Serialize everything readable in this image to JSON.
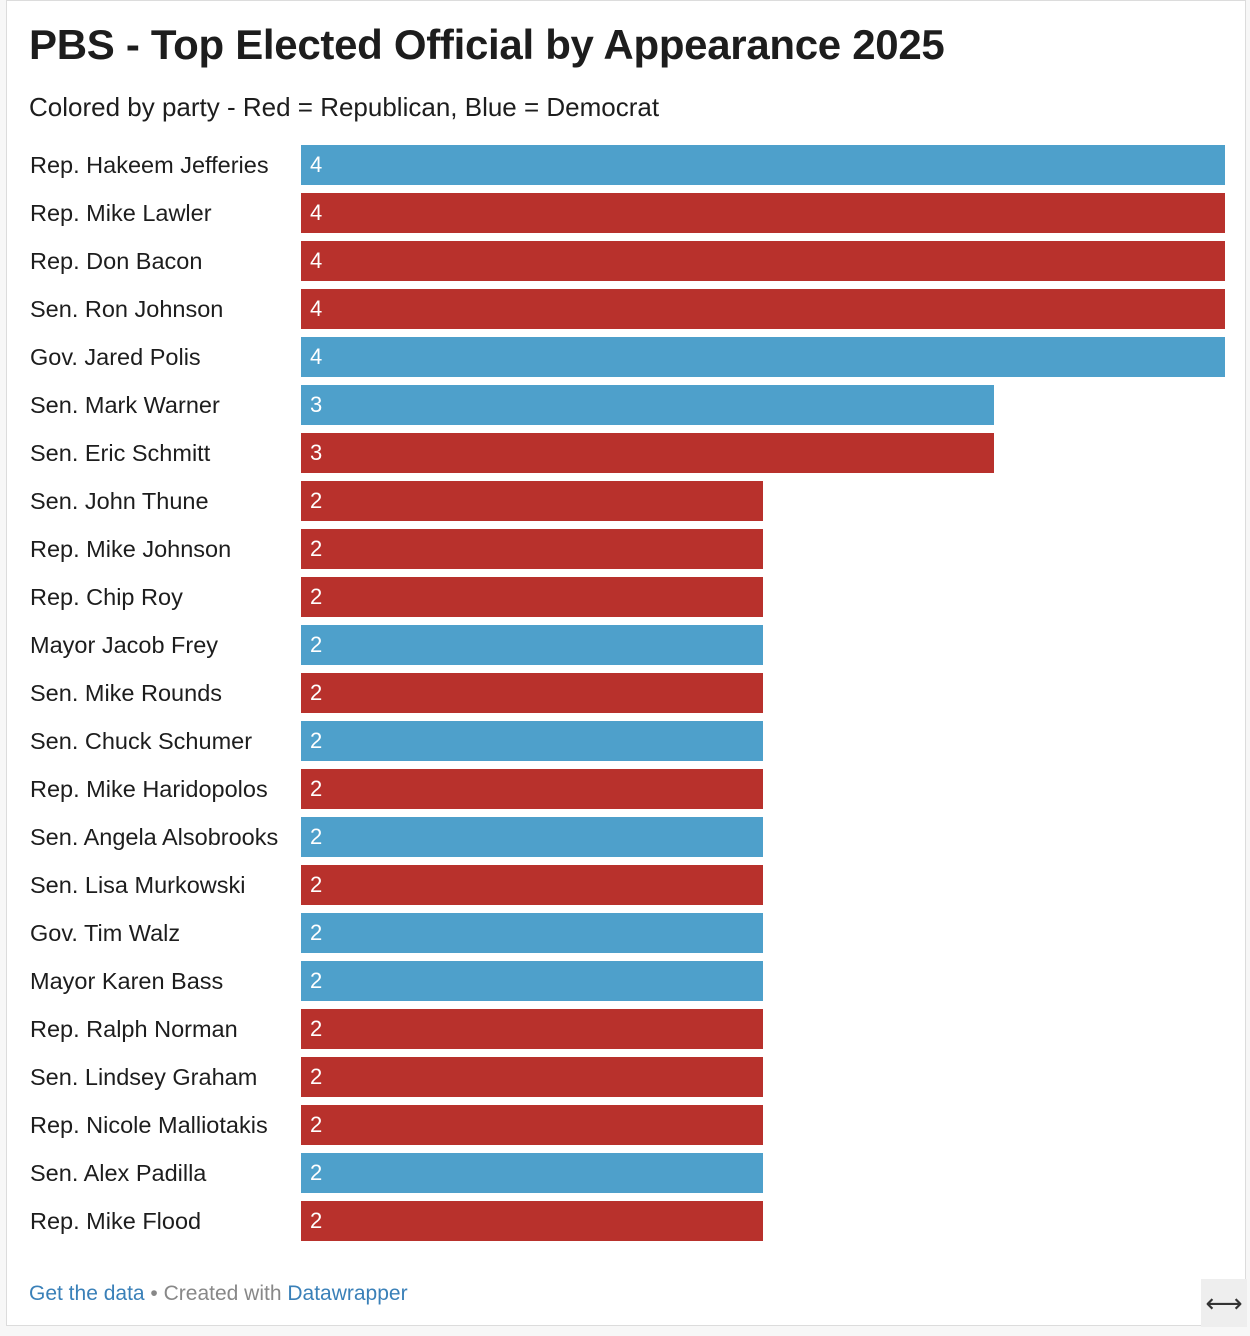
{
  "header": {
    "title": "PBS - Top Elected Official by Appearance 2025",
    "subtitle": "Colored by party - Red = Republican, Blue = Democrat"
  },
  "colors": {
    "republican": "#b8312c",
    "democrat": "#4ea0cb"
  },
  "chart_data": {
    "type": "bar",
    "orientation": "horizontal",
    "title": "PBS - Top Elected Official by Appearance 2025",
    "subtitle": "Colored by party - Red = Republican, Blue = Democrat",
    "xlabel": "",
    "ylabel": "",
    "xlim": [
      0,
      4
    ],
    "grid": false,
    "legend": "none",
    "categories": [
      "Rep. Hakeem Jefferies",
      "Rep. Mike Lawler",
      "Rep. Don Bacon",
      "Sen. Ron Johnson",
      "Gov. Jared Polis",
      "Sen. Mark Warner",
      "Sen. Eric Schmitt",
      "Sen. John Thune",
      "Rep. Mike Johnson",
      "Rep. Chip Roy",
      "Mayor Jacob Frey",
      "Sen. Mike Rounds",
      "Sen. Chuck Schumer",
      "Rep. Mike Haridopolos",
      "Sen. Angela Alsobrooks",
      "Sen. Lisa Murkowski",
      "Gov. Tim Walz",
      "Mayor Karen Bass",
      "Rep. Ralph Norman",
      "Sen. Lindsey Graham",
      "Rep. Nicole Malliotakis",
      "Sen. Alex Padilla",
      "Rep. Mike Flood"
    ],
    "values": [
      4,
      4,
      4,
      4,
      4,
      3,
      3,
      2,
      2,
      2,
      2,
      2,
      2,
      2,
      2,
      2,
      2,
      2,
      2,
      2,
      2,
      2,
      2
    ],
    "party": [
      "D",
      "R",
      "R",
      "R",
      "D",
      "D",
      "R",
      "R",
      "R",
      "R",
      "D",
      "R",
      "D",
      "R",
      "D",
      "R",
      "D",
      "D",
      "R",
      "R",
      "R",
      "D",
      "R"
    ]
  },
  "footer": {
    "get_data": "Get the data",
    "separator": " • Created with ",
    "datawrapper": "Datawrapper"
  },
  "controls": {
    "resize_icon": "⟷"
  }
}
